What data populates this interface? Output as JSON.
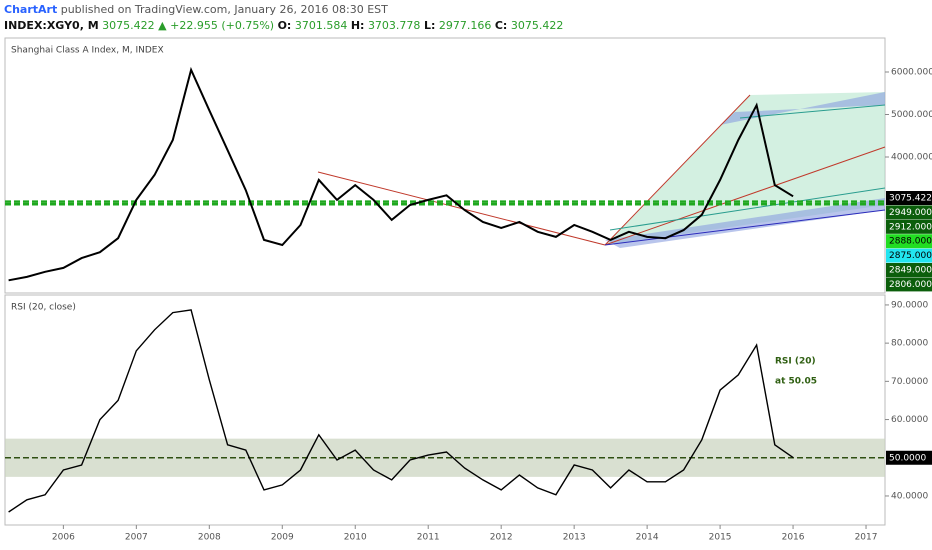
{
  "header": {
    "author": "ChartArt",
    "published": "published on TradingView.com, January 26, 2016 08:30 EST"
  },
  "legend": {
    "symbol": "INDEX:XGY0, M",
    "last": "3075.422",
    "change": "▲ +22.955 (+0.75%)",
    "ohlc": [
      {
        "key": "O:",
        "value": "3701.584"
      },
      {
        "key": "H:",
        "value": "3703.778"
      },
      {
        "key": "L:",
        "value": "2977.166"
      },
      {
        "key": "C:",
        "value": "3075.422"
      }
    ]
  },
  "chart_data": [
    {
      "type": "line",
      "title": "Shanghai Class A Index, M, INDEX",
      "color": "#000000",
      "x": [
        2005.25,
        2005.5,
        2005.75,
        2006,
        2006.25,
        2006.5,
        2006.75,
        2007,
        2007.25,
        2007.5,
        2007.75,
        2008,
        2008.25,
        2008.5,
        2008.75,
        2009,
        2009.25,
        2009.5,
        2009.75,
        2010,
        2010.25,
        2010.5,
        2010.75,
        2011,
        2011.25,
        2011.5,
        2011.75,
        2012,
        2012.25,
        2012.5,
        2012.75,
        2013,
        2013.25,
        2013.5,
        2013.75,
        2014,
        2014.25,
        2014.5,
        2014.75,
        2015,
        2015.25,
        2015.5,
        2015.75,
        2016
      ],
      "values": [
        1100,
        1180,
        1300,
        1390,
        1620,
        1760,
        2090,
        2990,
        3580,
        4400,
        6050,
        5100,
        4160,
        3220,
        2050,
        1930,
        2400,
        3460,
        2990,
        3340,
        2990,
        2520,
        2870,
        2990,
        3100,
        2750,
        2470,
        2330,
        2470,
        2240,
        2120,
        2400,
        2240,
        2050,
        2240,
        2120,
        2090,
        2280,
        2640,
        3460,
        4400,
        5220,
        3340,
        3075
      ],
      "xlim": [
        2005.2,
        2017.26
      ],
      "ylim": [
        800,
        6800
      ],
      "yticks": [
        {
          "value": 4000,
          "label": "4000.000"
        },
        {
          "value": 5000,
          "label": "5000.000"
        },
        {
          "value": 6000,
          "label": "6000.000"
        }
      ],
      "horizontal_lines": [
        {
          "value": 2949,
          "color": "#1fa81f"
        },
        {
          "value": 2888,
          "color": "#1fa81f"
        }
      ],
      "price_tags": [
        {
          "value": 3075.422,
          "label": "3075.422",
          "color": "#000000"
        },
        {
          "value": 2949,
          "label": "2949.000",
          "color": "#0b5e0b"
        },
        {
          "value": 2912,
          "label": "2912.000",
          "color": "#0b5e0b"
        },
        {
          "value": 2888,
          "label": "2888.000",
          "color": "#22dd22"
        },
        {
          "value": 2875,
          "label": "2875.000",
          "color": "#22e5f0"
        },
        {
          "value": 2849,
          "label": "2849.000",
          "color": "#0b5e0b"
        },
        {
          "value": 2806,
          "label": "2806.000",
          "color": "#0b5e0b"
        }
      ]
    },
    {
      "type": "line",
      "title": "RSI (20, close)",
      "color": "#000000",
      "x": [
        2005.25,
        2005.5,
        2005.75,
        2006,
        2006.25,
        2006.5,
        2006.75,
        2007,
        2007.25,
        2007.5,
        2007.75,
        2008,
        2008.25,
        2008.5,
        2008.75,
        2009,
        2009.25,
        2009.5,
        2009.75,
        2010,
        2010.25,
        2010.5,
        2010.75,
        2011,
        2011.25,
        2011.5,
        2011.75,
        2012,
        2012.25,
        2012.5,
        2012.75,
        2013,
        2013.25,
        2013.5,
        2013.75,
        2014,
        2014.25,
        2014.5,
        2014.75,
        2015,
        2015.25,
        2015.5,
        2015.75,
        2016
      ],
      "values": [
        35.8,
        39,
        40.3,
        46.8,
        48.1,
        60,
        65,
        78,
        83.5,
        88,
        88.7,
        70.4,
        53.4,
        52,
        41.6,
        42.9,
        46.8,
        56,
        49.4,
        52,
        46.8,
        44.2,
        49.4,
        50.7,
        51.5,
        47.3,
        44.2,
        41.6,
        45.5,
        42.1,
        40.3,
        48.1,
        46.8,
        42.1,
        46.8,
        43.7,
        43.7,
        46.8,
        54.7,
        67.7,
        71.7,
        79.5,
        53.4,
        50.05
      ],
      "xlim": [
        2005.2,
        2017.26
      ],
      "ylim": [
        32.4,
        92.6
      ],
      "yticks": [
        {
          "value": 40,
          "label": "40.0000"
        },
        {
          "value": 60,
          "label": "60.0000"
        },
        {
          "value": 70,
          "label": "70.0000"
        },
        {
          "value": 80,
          "label": "80.0000"
        },
        {
          "value": 90,
          "label": "90.0000"
        }
      ],
      "xticks": [
        2006,
        2007,
        2008,
        2009,
        2010,
        2011,
        2012,
        2013,
        2014,
        2015,
        2016,
        2017
      ],
      "band": [
        45,
        55
      ],
      "band_color": "#c9d3bd",
      "reference_line": {
        "value": 50,
        "label": "50.0000",
        "color": "#2f4f12"
      },
      "annotation": [
        "RSI (20)",
        "at 50.05"
      ],
      "annotation_color": "#2f5f12"
    }
  ]
}
